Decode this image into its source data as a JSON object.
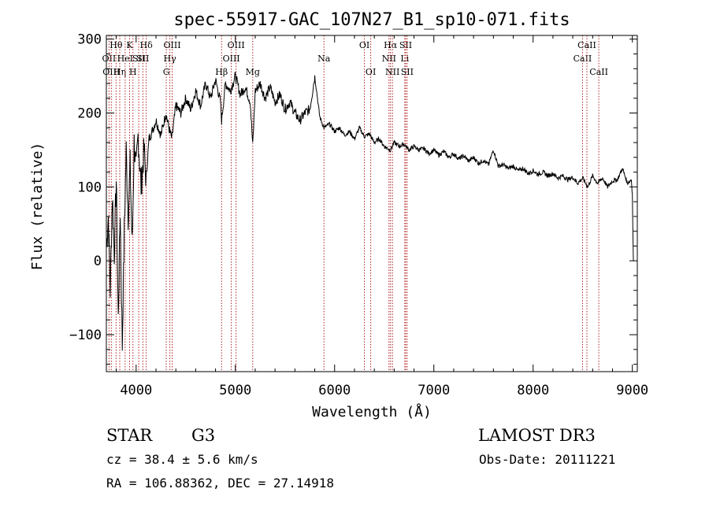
{
  "chart_data": {
    "type": "line",
    "title": "spec-55917-GAC_107N27_B1_sp10-071.fits",
    "xlabel": "Wavelength (Å)",
    "ylabel": "Flux (relative)",
    "xlim": [
      3700,
      9050
    ],
    "ylim": [
      -150,
      305
    ],
    "x_ticks": [
      4000,
      5000,
      6000,
      7000,
      8000,
      9000
    ],
    "y_ticks": [
      -100,
      0,
      100,
      200,
      300
    ],
    "series": [
      {
        "name": "flux",
        "points": [
          [
            3700,
            20
          ],
          [
            3720,
            60
          ],
          [
            3740,
            -40
          ],
          [
            3760,
            90
          ],
          [
            3780,
            10
          ],
          [
            3800,
            110
          ],
          [
            3820,
            -80
          ],
          [
            3840,
            70
          ],
          [
            3860,
            -115
          ],
          [
            3880,
            40
          ],
          [
            3900,
            150
          ],
          [
            3920,
            60
          ],
          [
            3940,
            130
          ],
          [
            3960,
            20
          ],
          [
            3980,
            160
          ],
          [
            4000,
            120
          ],
          [
            4020,
            170
          ],
          [
            4050,
            100
          ],
          [
            4080,
            150
          ],
          [
            4100,
            110
          ],
          [
            4130,
            165
          ],
          [
            4160,
            175
          ],
          [
            4200,
            190
          ],
          [
            4250,
            170
          ],
          [
            4300,
            200
          ],
          [
            4330,
            180
          ],
          [
            4360,
            165
          ],
          [
            4400,
            210
          ],
          [
            4450,
            200
          ],
          [
            4500,
            220
          ],
          [
            4550,
            205
          ],
          [
            4600,
            230
          ],
          [
            4650,
            210
          ],
          [
            4700,
            240
          ],
          [
            4750,
            220
          ],
          [
            4800,
            245
          ],
          [
            4850,
            215
          ],
          [
            4861,
            190
          ],
          [
            4900,
            240
          ],
          [
            4950,
            230
          ],
          [
            5000,
            250
          ],
          [
            5050,
            225
          ],
          [
            5100,
            235
          ],
          [
            5150,
            215
          ],
          [
            5175,
            155
          ],
          [
            5200,
            230
          ],
          [
            5250,
            240
          ],
          [
            5300,
            220
          ],
          [
            5350,
            235
          ],
          [
            5400,
            215
          ],
          [
            5450,
            225
          ],
          [
            5500,
            205
          ],
          [
            5550,
            215
          ],
          [
            5600,
            200
          ],
          [
            5650,
            190
          ],
          [
            5700,
            200
          ],
          [
            5750,
            205
          ],
          [
            5800,
            250
          ],
          [
            5850,
            195
          ],
          [
            5893,
            180
          ],
          [
            5950,
            185
          ],
          [
            6000,
            175
          ],
          [
            6050,
            180
          ],
          [
            6100,
            170
          ],
          [
            6150,
            175
          ],
          [
            6200,
            165
          ],
          [
            6250,
            180
          ],
          [
            6300,
            168
          ],
          [
            6350,
            172
          ],
          [
            6400,
            160
          ],
          [
            6450,
            165
          ],
          [
            6500,
            155
          ],
          [
            6563,
            150
          ],
          [
            6600,
            160
          ],
          [
            6650,
            155
          ],
          [
            6700,
            158
          ],
          [
            6750,
            150
          ],
          [
            6800,
            155
          ],
          [
            6850,
            150
          ],
          [
            6900,
            152
          ],
          [
            6950,
            145
          ],
          [
            7000,
            150
          ],
          [
            7050,
            143
          ],
          [
            7100,
            148
          ],
          [
            7150,
            140
          ],
          [
            7200,
            145
          ],
          [
            7250,
            138
          ],
          [
            7300,
            142
          ],
          [
            7350,
            135
          ],
          [
            7400,
            140
          ],
          [
            7450,
            132
          ],
          [
            7500,
            136
          ],
          [
            7550,
            130
          ],
          [
            7600,
            150
          ],
          [
            7650,
            128
          ],
          [
            7700,
            130
          ],
          [
            7750,
            125
          ],
          [
            7800,
            128
          ],
          [
            7850,
            122
          ],
          [
            7900,
            125
          ],
          [
            7950,
            118
          ],
          [
            8000,
            122
          ],
          [
            8050,
            117
          ],
          [
            8100,
            120
          ],
          [
            8150,
            115
          ],
          [
            8200,
            118
          ],
          [
            8250,
            112
          ],
          [
            8300,
            115
          ],
          [
            8350,
            110
          ],
          [
            8400,
            113
          ],
          [
            8450,
            105
          ],
          [
            8500,
            112
          ],
          [
            8550,
            100
          ],
          [
            8600,
            115
          ],
          [
            8650,
            105
          ],
          [
            8700,
            112
          ],
          [
            8750,
            100
          ],
          [
            8800,
            108
          ],
          [
            8850,
            110
          ],
          [
            8900,
            125
          ],
          [
            8950,
            105
          ],
          [
            8990,
            110
          ],
          [
            9000,
            90
          ],
          [
            9010,
            0
          ]
        ]
      }
    ],
    "lines": [
      {
        "w": 3727,
        "label": "OII",
        "row": 1
      },
      {
        "w": 3750,
        "label": "OIII",
        "row": 2
      },
      {
        "w": 3798,
        "label": "Hθ",
        "row": 0
      },
      {
        "w": 3835,
        "label": "Hη",
        "row": 2
      },
      {
        "w": 3889,
        "label": "HeI",
        "row": 1
      },
      {
        "w": 3934,
        "label": "K",
        "row": 0
      },
      {
        "w": 3968,
        "label": "H",
        "row": 2
      },
      {
        "w": 4026,
        "label": "SII",
        "row": 1
      },
      {
        "w": 4102,
        "label": "Hδ",
        "row": 0
      },
      {
        "w": 4068,
        "label": "SII",
        "row": 1
      },
      {
        "w": 4304,
        "label": "G",
        "row": 2
      },
      {
        "w": 4340,
        "label": "Hγ",
        "row": 1
      },
      {
        "w": 4363,
        "label": "OIII",
        "row": 0
      },
      {
        "w": 4861,
        "label": "Hβ",
        "row": 2
      },
      {
        "w": 4959,
        "label": "OIII",
        "row": 1
      },
      {
        "w": 5007,
        "label": "OIII",
        "row": 0
      },
      {
        "w": 5175,
        "label": "Mg",
        "row": 2
      },
      {
        "w": 5893,
        "label": "Na",
        "row": 1
      },
      {
        "w": 6300,
        "label": "OI",
        "row": 0
      },
      {
        "w": 6364,
        "label": "OI",
        "row": 2
      },
      {
        "w": 6548,
        "label": "NII",
        "row": 1
      },
      {
        "w": 6563,
        "label": "Hα",
        "row": 0
      },
      {
        "w": 6583,
        "label": "NII",
        "row": 2
      },
      {
        "w": 6707,
        "label": "Li",
        "row": 1
      },
      {
        "w": 6716,
        "label": "SII",
        "row": 0
      },
      {
        "w": 6731,
        "label": "SII",
        "row": 2
      },
      {
        "w": 8498,
        "label": "CaII",
        "row": 1
      },
      {
        "w": 8542,
        "label": "CaII",
        "row": 0
      },
      {
        "w": 8662,
        "label": "CaII",
        "row": 2
      }
    ],
    "line_color": "#b22222"
  },
  "info": {
    "object_type": "STAR",
    "subclass": "G3",
    "survey": "LAMOST DR3",
    "cz": "cz = 38.4 ± 5.6 km/s",
    "obs_date": "Obs-Date: 20111221",
    "coords": "RA = 106.88362, DEC =  27.14918"
  }
}
